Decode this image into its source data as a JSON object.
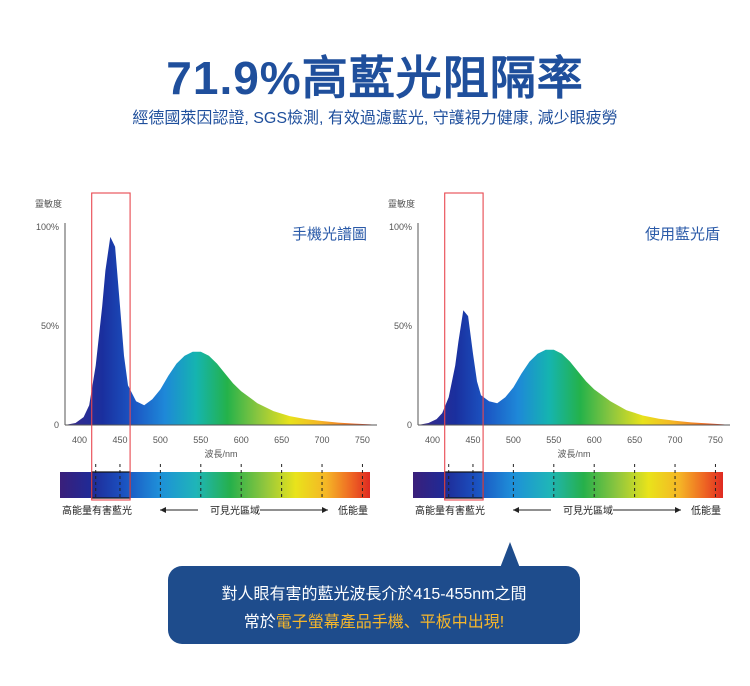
{
  "header": {
    "title": "71.9%高藍光阻隔率",
    "subtitle": "經德國萊因認證, SGS檢測, 有效過濾藍光, 守護視力健康, 減少眼疲勞"
  },
  "chart_data": [
    {
      "type": "area",
      "title": "手機光譜圖",
      "ylabel": "靈敏度",
      "xlabel": "波長/nm",
      "x_ticks": [
        400,
        450,
        500,
        550,
        600,
        650,
        700,
        750
      ],
      "y_ticks": [
        "0",
        "50%",
        "100%"
      ],
      "ylim": [
        0,
        100
      ],
      "xlim": [
        382,
        768
      ],
      "x": [
        382,
        395,
        405,
        412,
        420,
        428,
        432,
        438,
        444,
        450,
        455,
        460,
        470,
        480,
        490,
        500,
        510,
        520,
        530,
        540,
        550,
        560,
        570,
        580,
        590,
        600,
        620,
        640,
        660,
        680,
        700,
        720,
        740,
        760,
        768
      ],
      "values": [
        0,
        1,
        4,
        10,
        30,
        60,
        78,
        95,
        90,
        60,
        35,
        20,
        12,
        10,
        13,
        18,
        25,
        31,
        35,
        37,
        37,
        35,
        31,
        26,
        21,
        17,
        11,
        7,
        4.5,
        3,
        2,
        1.2,
        0.7,
        0.3,
        0
      ],
      "highlight_band": [
        420,
        465
      ],
      "spectrum_bar": {
        "left_label": "高能量有害藍光",
        "center_label": "可見光區域",
        "right_label": "低能量"
      }
    },
    {
      "type": "area",
      "title": "使用藍光盾",
      "ylabel": "靈敏度",
      "xlabel": "波長/nm",
      "x_ticks": [
        400,
        450,
        500,
        550,
        600,
        650,
        700,
        750
      ],
      "y_ticks": [
        "0",
        "50%",
        "100%"
      ],
      "ylim": [
        0,
        100
      ],
      "xlim": [
        382,
        768
      ],
      "x": [
        382,
        395,
        405,
        412,
        420,
        428,
        432,
        438,
        444,
        450,
        455,
        460,
        470,
        480,
        490,
        500,
        510,
        520,
        530,
        540,
        550,
        560,
        570,
        580,
        590,
        600,
        620,
        640,
        660,
        680,
        700,
        720,
        740,
        760,
        768
      ],
      "values": [
        0,
        1,
        3,
        6,
        14,
        30,
        42,
        58,
        55,
        36,
        22,
        15,
        12,
        11,
        14,
        19,
        26,
        32,
        36,
        38,
        38,
        36,
        32,
        27,
        22,
        18,
        12,
        7.5,
        4.8,
        3.2,
        2.1,
        1.3,
        0.8,
        0.3,
        0
      ],
      "highlight_band": [
        420,
        465
      ],
      "spectrum_bar": {
        "left_label": "高能量有害藍光",
        "center_label": "可見光區域",
        "right_label": "低能量"
      }
    }
  ],
  "callout": {
    "line1": "對人眼有害的藍光波長介於415-455nm之間",
    "line2_prefix": "常於",
    "line2_highlight": "電子螢幕產品手機、平板中出現!"
  },
  "colors": {
    "title": "#1f4f9c",
    "callout_bg": "#1e4c8c",
    "callout_highlight": "#f5b62b",
    "highlight_box": "#e8474f"
  }
}
